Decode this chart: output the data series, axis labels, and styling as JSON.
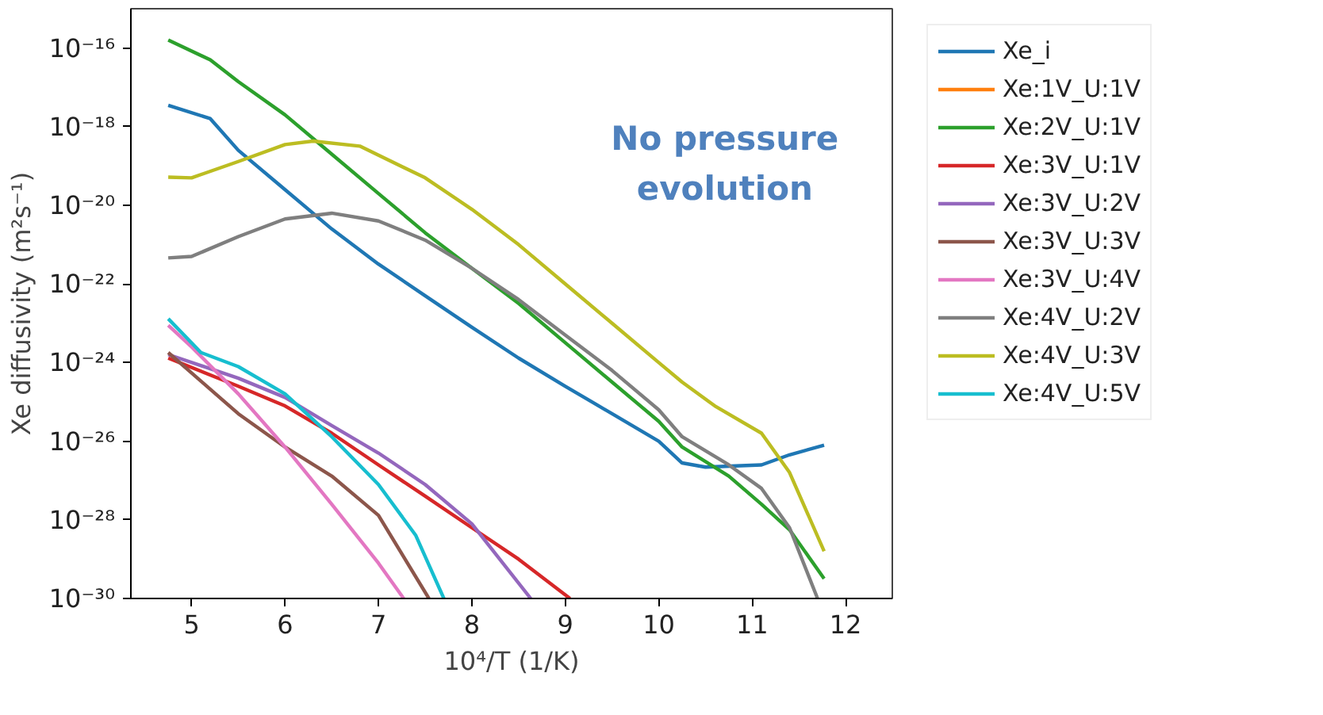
{
  "chart_data": {
    "type": "line",
    "xlabel": "10⁴/T (1/K)",
    "ylabel": "Xe diffusivity (m²s⁻¹)",
    "log": "y",
    "grid": false,
    "legend": "right",
    "marker": "none",
    "line_style": "solid",
    "xlim": [
      4.35,
      12.5
    ],
    "xticks": [
      5,
      6,
      7,
      8,
      9,
      10,
      11,
      12
    ],
    "ylim": [
      1e-30,
      1e-15
    ],
    "yticks": [
      {
        "value": 1e-30,
        "label": "10⁻³⁰"
      },
      {
        "value": 1e-28,
        "label": "10⁻²⁸"
      },
      {
        "value": 1e-26,
        "label": "10⁻²⁶"
      },
      {
        "value": 1e-24,
        "label": "10⁻²⁴"
      },
      {
        "value": 1e-22,
        "label": "10⁻²²"
      },
      {
        "value": 1e-20,
        "label": "10⁻²⁰"
      },
      {
        "value": 1e-18,
        "label": "10⁻¹⁸"
      },
      {
        "value": 1e-16,
        "label": "10⁻¹⁶"
      }
    ],
    "annotations": [
      "No pressure\nevolution"
    ],
    "series": [
      {
        "name": "Xe_i",
        "color": "#1f77b4",
        "x": [
          4.75,
          5.2,
          5.5,
          6,
          6.5,
          7,
          7.5,
          8,
          8.5,
          9,
          9.5,
          10,
          10.25,
          10.5,
          11.1,
          11.4,
          11.77
        ],
        "values": [
          3.5e-18,
          1.6e-18,
          2.5e-19,
          2.5e-20,
          2.5e-21,
          3.2e-22,
          5e-23,
          7.9e-24,
          1.3e-24,
          2.5e-25,
          5e-26,
          1e-26,
          2.8e-27,
          2.2e-27,
          2.5e-27,
          4.5e-27,
          7.9e-27
        ]
      },
      {
        "name": "Xe:1V_U:1V",
        "color": "#ff7f0e"
      },
      {
        "name": "Xe:2V_U:1V",
        "color": "#2ca02c",
        "x": [
          4.75,
          5.2,
          5.5,
          6,
          6.5,
          7,
          7.5,
          8,
          8.5,
          9,
          9.5,
          10,
          10.25,
          10.75,
          11.1,
          11.4,
          11.77
        ],
        "values": [
          1.6e-16,
          5e-17,
          1.4e-17,
          2e-18,
          2e-19,
          2e-20,
          2e-21,
          2.5e-22,
          3.2e-23,
          3.2e-24,
          3.2e-25,
          3.2e-26,
          7.1e-27,
          1.3e-27,
          2.5e-28,
          5.6e-29,
          3.2e-30
        ]
      },
      {
        "name": "Xe:3V_U:1V",
        "color": "#d62728",
        "x": [
          4.75,
          5.5,
          6,
          6.5,
          7,
          7.5,
          8,
          8.5,
          9.05
        ],
        "values": [
          1.3e-24,
          2.5e-25,
          7.9e-26,
          1.6e-26,
          2.5e-27,
          4e-28,
          6.3e-29,
          1e-29,
          1e-30
        ]
      },
      {
        "name": "Xe:3V_U:2V",
        "color": "#9467bd",
        "x": [
          4.75,
          5.5,
          6,
          6.5,
          7,
          7.5,
          8,
          8.63
        ],
        "values": [
          1.6e-24,
          4e-25,
          1.3e-25,
          2.5e-26,
          5e-27,
          7.9e-28,
          7.9e-29,
          1e-30
        ]
      },
      {
        "name": "Xe:3V_U:3V",
        "color": "#8c564b",
        "x": [
          4.75,
          5.5,
          6,
          6.5,
          7,
          7.54
        ],
        "values": [
          1.8e-24,
          5e-26,
          7.1e-27,
          1.3e-27,
          1.3e-28,
          1e-30
        ]
      },
      {
        "name": "Xe:3V_U:4V",
        "color": "#e377c2",
        "x": [
          4.75,
          5,
          5.5,
          6,
          6.5,
          7,
          7.27
        ],
        "values": [
          8.9e-24,
          2.5e-24,
          1.6e-25,
          7.1e-27,
          2.5e-28,
          7.9e-30,
          1e-30
        ]
      },
      {
        "name": "Xe:4V_U:2V",
        "color": "#7f7f7f",
        "x": [
          4.75,
          5,
          5.5,
          6,
          6.5,
          7,
          7.5,
          8,
          8.5,
          9,
          9.5,
          10,
          10.25,
          10.75,
          11.1,
          11.4,
          11.7
        ],
        "values": [
          4.6e-22,
          5e-22,
          1.6e-21,
          4.5e-21,
          6.3e-21,
          4e-21,
          1.3e-21,
          2.5e-22,
          4e-23,
          5e-24,
          6.3e-25,
          6.3e-26,
          1.3e-26,
          2.5e-27,
          6.3e-28,
          6.3e-29,
          1e-30
        ]
      },
      {
        "name": "Xe:4V_U:3V",
        "color": "#bcbd22",
        "x": [
          4.75,
          5,
          5.5,
          6,
          6.3,
          6.8,
          7.5,
          8,
          8.5,
          9,
          9.5,
          10,
          10.25,
          10.6,
          11.1,
          11.4,
          11.77
        ],
        "values": [
          5.2e-20,
          5e-20,
          1.3e-19,
          3.5e-19,
          4.3e-19,
          3.2e-19,
          5e-20,
          7.9e-21,
          1e-21,
          1e-22,
          1e-23,
          1e-24,
          3.2e-25,
          7.9e-26,
          1.6e-26,
          1.6e-27,
          1.6e-29
        ]
      },
      {
        "name": "Xe:4V_U:5V",
        "color": "#17becf",
        "x": [
          4.75,
          5.1,
          5.5,
          6,
          6.5,
          7,
          7.4,
          7.7
        ],
        "values": [
          1.3e-23,
          1.8e-24,
          7.9e-25,
          1.6e-25,
          1.3e-26,
          7.9e-28,
          4e-29,
          1e-30
        ]
      }
    ]
  }
}
